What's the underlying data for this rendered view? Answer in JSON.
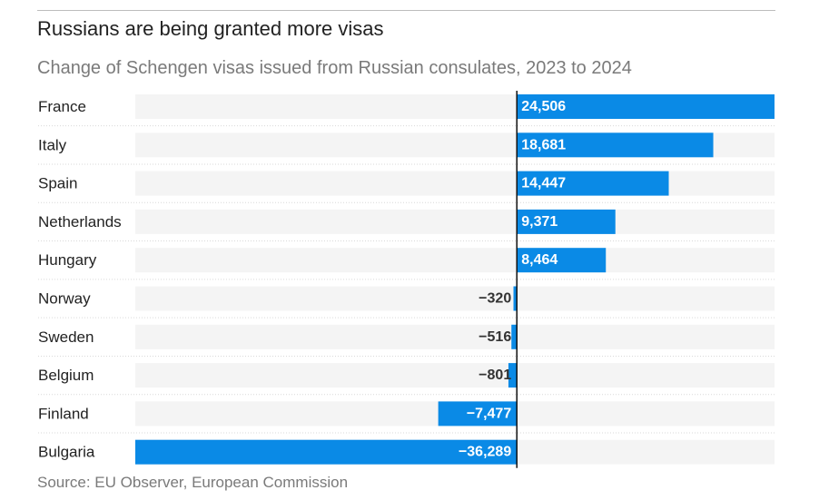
{
  "chart_data": {
    "type": "bar",
    "orientation": "horizontal",
    "title": "Russians are being granted more visas",
    "subtitle": "Change of Schengen visas issued from Russian consulates, 2023 to 2024",
    "source": "Source: EU Observer, European Commission",
    "categories": [
      "France",
      "Italy",
      "Spain",
      "Netherlands",
      "Hungary",
      "Norway",
      "Sweden",
      "Belgium",
      "Finland",
      "Bulgaria"
    ],
    "values": [
      24506,
      18681,
      14447,
      9371,
      8464,
      -320,
      -516,
      -801,
      -7477,
      -36289
    ],
    "value_labels": [
      "24,506",
      "18,681",
      "14,447",
      "9,371",
      "8,464",
      "−320",
      "−516",
      "−801",
      "−7,477",
      "−36,289"
    ],
    "xlim": [
      -36289,
      24506
    ],
    "xlabel": "",
    "ylabel": "",
    "grid": false,
    "legend": "none"
  },
  "colors": {
    "bar": "#0a8ae6",
    "track": "#f4f4f4",
    "zero_line": "#111111",
    "row_divider": "#d9d9d9",
    "label_on_bar": "#ffffff",
    "label_off_bar": "#333333"
  }
}
